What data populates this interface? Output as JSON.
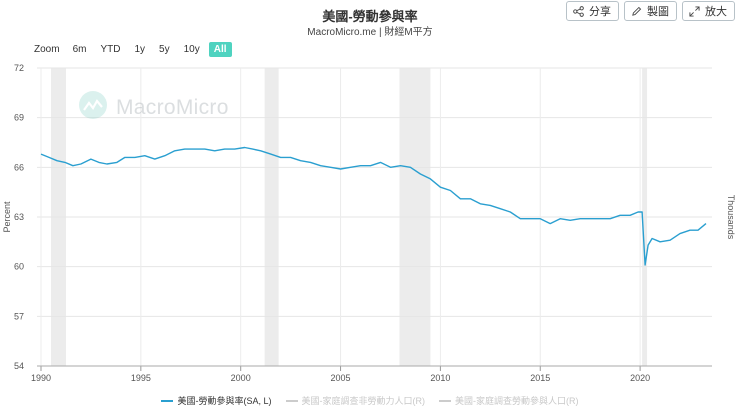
{
  "header": {
    "title": "美國-勞動參與率",
    "subtitle": "MacroMicro.me | 財經M平方"
  },
  "toolbar": {
    "share_label": "分享",
    "draw_label": "製圖",
    "expand_label": "放大"
  },
  "zoom": {
    "label": "Zoom",
    "options": [
      "6m",
      "YTD",
      "1y",
      "5y",
      "10y",
      "All"
    ],
    "active": "All"
  },
  "watermark": {
    "text": "MacroMicro"
  },
  "legend": [
    {
      "label": "美國-勞動參與率(SA, L)",
      "color": "#2a9fd0",
      "active": true
    },
    {
      "label": "美國-家庭調查非勞動力人口(R)",
      "color": "#cccccc",
      "active": false
    },
    {
      "label": "美國-家庭調查勞動參與人口(R)",
      "color": "#cccccc",
      "active": false
    }
  ],
  "chart_data": {
    "type": "line",
    "ylabel": "Percent",
    "y2label": "Thousands",
    "ylim": [
      54,
      72
    ],
    "yticks": [
      54,
      57,
      60,
      63,
      66,
      69,
      72
    ],
    "xlim": [
      1989.8,
      2023.6
    ],
    "xticks": [
      1990,
      1995,
      2000,
      2005,
      2010,
      2015,
      2020
    ],
    "recessions": [
      [
        1990.5,
        1991.25
      ],
      [
        2001.2,
        2001.9
      ],
      [
        2007.95,
        2009.5
      ],
      [
        2020.1,
        2020.35
      ]
    ],
    "series": [
      {
        "name": "美國-勞動參與率(SA, L)",
        "color": "#2a9fd0",
        "points": [
          [
            1990.0,
            66.8
          ],
          [
            1990.4,
            66.6
          ],
          [
            1990.8,
            66.4
          ],
          [
            1991.2,
            66.3
          ],
          [
            1991.6,
            66.1
          ],
          [
            1992.0,
            66.2
          ],
          [
            1992.5,
            66.5
          ],
          [
            1992.9,
            66.3
          ],
          [
            1993.3,
            66.2
          ],
          [
            1993.8,
            66.3
          ],
          [
            1994.2,
            66.6
          ],
          [
            1994.7,
            66.6
          ],
          [
            1995.2,
            66.7
          ],
          [
            1995.7,
            66.5
          ],
          [
            1996.2,
            66.7
          ],
          [
            1996.7,
            67.0
          ],
          [
            1997.2,
            67.1
          ],
          [
            1997.7,
            67.1
          ],
          [
            1998.2,
            67.1
          ],
          [
            1998.7,
            67.0
          ],
          [
            1999.2,
            67.1
          ],
          [
            1999.7,
            67.1
          ],
          [
            2000.2,
            67.2
          ],
          [
            2000.6,
            67.1
          ],
          [
            2001.0,
            67.0
          ],
          [
            2001.5,
            66.8
          ],
          [
            2002.0,
            66.6
          ],
          [
            2002.5,
            66.6
          ],
          [
            2003.0,
            66.4
          ],
          [
            2003.5,
            66.3
          ],
          [
            2004.0,
            66.1
          ],
          [
            2004.5,
            66.0
          ],
          [
            2005.0,
            65.9
          ],
          [
            2005.5,
            66.0
          ],
          [
            2006.0,
            66.1
          ],
          [
            2006.5,
            66.1
          ],
          [
            2007.0,
            66.3
          ],
          [
            2007.5,
            66.0
          ],
          [
            2008.0,
            66.1
          ],
          [
            2008.5,
            66.0
          ],
          [
            2009.0,
            65.6
          ],
          [
            2009.5,
            65.3
          ],
          [
            2010.0,
            64.8
          ],
          [
            2010.5,
            64.6
          ],
          [
            2011.0,
            64.1
          ],
          [
            2011.5,
            64.1
          ],
          [
            2012.0,
            63.8
          ],
          [
            2012.5,
            63.7
          ],
          [
            2013.0,
            63.5
          ],
          [
            2013.5,
            63.3
          ],
          [
            2014.0,
            62.9
          ],
          [
            2014.5,
            62.9
          ],
          [
            2015.0,
            62.9
          ],
          [
            2015.5,
            62.6
          ],
          [
            2016.0,
            62.9
          ],
          [
            2016.5,
            62.8
          ],
          [
            2017.0,
            62.9
          ],
          [
            2017.5,
            62.9
          ],
          [
            2018.0,
            62.9
          ],
          [
            2018.5,
            62.9
          ],
          [
            2019.0,
            63.1
          ],
          [
            2019.5,
            63.1
          ],
          [
            2019.9,
            63.3
          ],
          [
            2020.1,
            63.3
          ],
          [
            2020.25,
            60.1
          ],
          [
            2020.4,
            61.3
          ],
          [
            2020.6,
            61.7
          ],
          [
            2021.0,
            61.5
          ],
          [
            2021.5,
            61.6
          ],
          [
            2022.0,
            62.0
          ],
          [
            2022.5,
            62.2
          ],
          [
            2022.9,
            62.2
          ],
          [
            2023.3,
            62.6
          ]
        ]
      }
    ]
  }
}
